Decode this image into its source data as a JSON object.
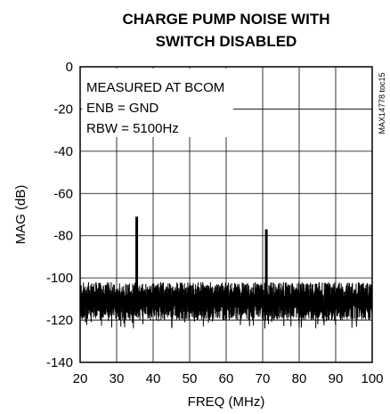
{
  "chart_data": {
    "type": "line",
    "title": [
      "CHARGE PUMP NOISE WITH",
      "SWITCH DISABLED"
    ],
    "xlabel": "FREQ (MHz)",
    "ylabel": "MAG (dB)",
    "xlim": [
      20,
      100
    ],
    "ylim": [
      -140,
      0
    ],
    "x_ticks": [
      20,
      30,
      40,
      50,
      60,
      70,
      80,
      90,
      100
    ],
    "y_ticks": [
      0,
      -20,
      -40,
      -60,
      -80,
      -100,
      -120,
      -140
    ],
    "grid": true,
    "annotations": [
      "MEASURED AT BCOM",
      "ENB = GND",
      "RBW = 5100Hz"
    ],
    "part_id": "MAX14778 toc15",
    "series": [
      {
        "noise_floor_db": [
          -120,
          -102
        ],
        "noise_floor_center_db": -111,
        "peaks": [
          {
            "x": 35.5,
            "y": -71
          },
          {
            "x": 71,
            "y": -77
          }
        ]
      }
    ],
    "color": "#000000"
  }
}
